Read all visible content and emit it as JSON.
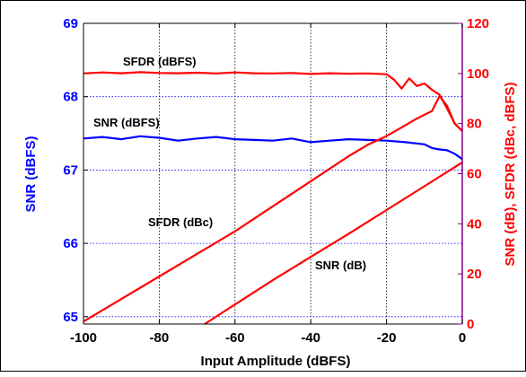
{
  "chart_data": {
    "type": "line",
    "xlabel": "Input Amplitude (dBFS)",
    "ylabel_left": "SNR (dBFS)",
    "ylabel_right": "SNR (dB), SFDR (dBc, dBFS)",
    "xlim": [
      -100,
      0
    ],
    "ylim_left": [
      64.9,
      69
    ],
    "ylim_right": [
      0,
      120
    ],
    "x_ticks": [
      "-100",
      "-80",
      "-60",
      "-40",
      "-20",
      "0"
    ],
    "x_tick_values": [
      -100,
      -80,
      -60,
      -40,
      -20,
      0
    ],
    "y_left_ticks": [
      "65",
      "66",
      "67",
      "68",
      "69"
    ],
    "y_left_tick_values": [
      65,
      66,
      67,
      68,
      69
    ],
    "y_right_ticks": [
      "0",
      "20",
      "40",
      "60",
      "80",
      "100",
      "120"
    ],
    "y_right_tick_values": [
      0,
      20,
      40,
      60,
      80,
      100,
      120
    ],
    "grid": {
      "vertical": "dotted black",
      "horizontal": "dotted blue"
    },
    "colors": {
      "left_axis": "#0000ff",
      "right_axis": "#ff0000",
      "right_spine": "#800080",
      "snr_dbfs": "#0000ff",
      "sfdr_dbfs": "#ff0000",
      "sfdr_dbc": "#ff0000",
      "snr_db": "#ff0000"
    },
    "series": [
      {
        "name": "SFDR (dBFS)",
        "axis": "right",
        "color": "#ff0000",
        "x": [
          -100,
          -95,
          -90,
          -85,
          -80,
          -75,
          -70,
          -65,
          -60,
          -55,
          -50,
          -45,
          -40,
          -35,
          -30,
          -25,
          -20,
          -18,
          -16,
          -14,
          -12,
          -10,
          -8,
          -6,
          -4,
          -2,
          0
        ],
        "y": [
          100,
          100.4,
          100.1,
          100.5,
          100.2,
          100.1,
          100.3,
          100.0,
          100.4,
          100.1,
          100.0,
          100.2,
          99.8,
          100.1,
          99.9,
          100.0,
          99.7,
          97.5,
          94.0,
          98.0,
          95.0,
          96.0,
          93.5,
          91.5,
          86.0,
          80.0,
          77.0
        ]
      },
      {
        "name": "SNR (dBFS)",
        "axis": "left",
        "color": "#0000ff",
        "x": [
          -100,
          -95,
          -90,
          -85,
          -80,
          -75,
          -70,
          -65,
          -60,
          -55,
          -50,
          -45,
          -40,
          -35,
          -30,
          -25,
          -20,
          -15,
          -10,
          -8,
          -6,
          -4,
          -2,
          0
        ],
        "y": [
          67.43,
          67.45,
          67.42,
          67.46,
          67.44,
          67.4,
          67.43,
          67.45,
          67.42,
          67.41,
          67.4,
          67.43,
          67.38,
          67.4,
          67.42,
          67.41,
          67.4,
          67.38,
          67.35,
          67.3,
          67.28,
          67.27,
          67.22,
          67.15
        ]
      },
      {
        "name": "SFDR (dBc)",
        "axis": "right",
        "color": "#ff0000",
        "x": [
          -100,
          -90,
          -80,
          -70,
          -60,
          -50,
          -40,
          -30,
          -25,
          -20,
          -16,
          -12,
          -8,
          -6,
          -4,
          -2,
          0
        ],
        "y": [
          1,
          10,
          19,
          28,
          37,
          47,
          57,
          67,
          71.5,
          75,
          78.5,
          82,
          85,
          91,
          87,
          80,
          77
        ]
      },
      {
        "name": "SNR (dB)",
        "axis": "right",
        "color": "#ff0000",
        "x": [
          -68,
          -60,
          -50,
          -40,
          -30,
          -20,
          -10,
          0
        ],
        "y": [
          0,
          7.8,
          17.5,
          26.8,
          36.0,
          45.5,
          55.0,
          64.5
        ]
      }
    ],
    "annotations": [
      "SFDR (dBFS)",
      "SNR (dBFS)",
      "SFDR (dBc)",
      "SNR (dB)"
    ]
  }
}
